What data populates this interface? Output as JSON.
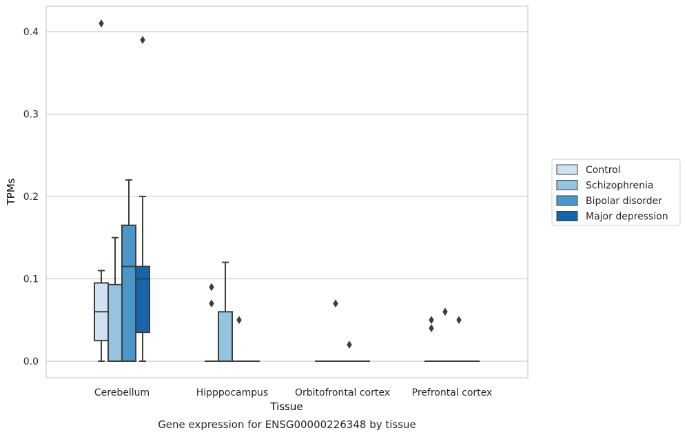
{
  "chart_data": {
    "type": "box",
    "title": "",
    "caption": "Gene expression for ENSG00000226348 by tissue",
    "xlabel": "Tissue",
    "ylabel": "TPMs",
    "ylim": [
      -0.02,
      0.43
    ],
    "yticks": [
      0.0,
      0.1,
      0.2,
      0.3,
      0.4
    ],
    "ytick_labels": [
      "0.0",
      "0.1",
      "0.2",
      "0.3",
      "0.4"
    ],
    "grid": "horizontal",
    "legend_position": "right",
    "categories": [
      "Cerebellum",
      "Hipppocampus",
      "Orbitofrontal cortex",
      "Prefrontal cortex"
    ],
    "series": [
      {
        "name": "Control",
        "color": "#d0e1f2",
        "boxes": [
          {
            "whislo": 0.0,
            "q1": 0.025,
            "med": 0.06,
            "q3": 0.095,
            "whishi": 0.11,
            "fliers": [
              0.41
            ]
          },
          {
            "whislo": 0.0,
            "q1": 0.0,
            "med": 0.0,
            "q3": 0.0,
            "whishi": 0.0,
            "fliers": [
              0.09,
              0.07
            ]
          },
          {
            "whislo": 0.0,
            "q1": 0.0,
            "med": 0.0,
            "q3": 0.0,
            "whishi": 0.0,
            "fliers": []
          },
          {
            "whislo": 0.0,
            "q1": 0.0,
            "med": 0.0,
            "q3": 0.0,
            "whishi": 0.0,
            "fliers": [
              0.05,
              0.04
            ]
          }
        ]
      },
      {
        "name": "Schizophrenia",
        "color": "#94c4df",
        "boxes": [
          {
            "whislo": 0.0,
            "q1": 0.0,
            "med": 0.0,
            "q3": 0.093,
            "whishi": 0.15,
            "fliers": []
          },
          {
            "whislo": 0.0,
            "q1": 0.0,
            "med": 0.0,
            "q3": 0.06,
            "whishi": 0.12,
            "fliers": []
          },
          {
            "whislo": 0.0,
            "q1": 0.0,
            "med": 0.0,
            "q3": 0.0,
            "whishi": 0.0,
            "fliers": [
              0.07
            ]
          },
          {
            "whislo": 0.0,
            "q1": 0.0,
            "med": 0.0,
            "q3": 0.0,
            "whishi": 0.0,
            "fliers": [
              0.06
            ]
          }
        ]
      },
      {
        "name": "Bipolar disorder",
        "color": "#4a98c9",
        "boxes": [
          {
            "whislo": 0.0,
            "q1": 0.0,
            "med": 0.115,
            "q3": 0.165,
            "whishi": 0.22,
            "fliers": []
          },
          {
            "whislo": 0.0,
            "q1": 0.0,
            "med": 0.0,
            "q3": 0.0,
            "whishi": 0.0,
            "fliers": [
              0.05
            ]
          },
          {
            "whislo": 0.0,
            "q1": 0.0,
            "med": 0.0,
            "q3": 0.0,
            "whishi": 0.0,
            "fliers": [
              0.02
            ]
          },
          {
            "whislo": 0.0,
            "q1": 0.0,
            "med": 0.0,
            "q3": 0.0,
            "whishi": 0.0,
            "fliers": [
              0.05
            ]
          }
        ]
      },
      {
        "name": "Major depression",
        "color": "#1764ab",
        "boxes": [
          {
            "whislo": 0.0,
            "q1": 0.035,
            "med": 0.1,
            "q3": 0.115,
            "whishi": 0.2,
            "fliers": [
              0.39
            ]
          },
          {
            "whislo": 0.0,
            "q1": 0.0,
            "med": 0.0,
            "q3": 0.0,
            "whishi": 0.0,
            "fliers": []
          },
          {
            "whislo": 0.0,
            "q1": 0.0,
            "med": 0.0,
            "q3": 0.0,
            "whishi": 0.0,
            "fliers": []
          },
          {
            "whislo": 0.0,
            "q1": 0.0,
            "med": 0.0,
            "q3": 0.0,
            "whishi": 0.0,
            "fliers": []
          }
        ]
      }
    ],
    "colors": {
      "axis_frame": "#cccccc",
      "gridline": "#cccccc",
      "box_edge": "#3d3d3d",
      "text": "#262626"
    }
  }
}
